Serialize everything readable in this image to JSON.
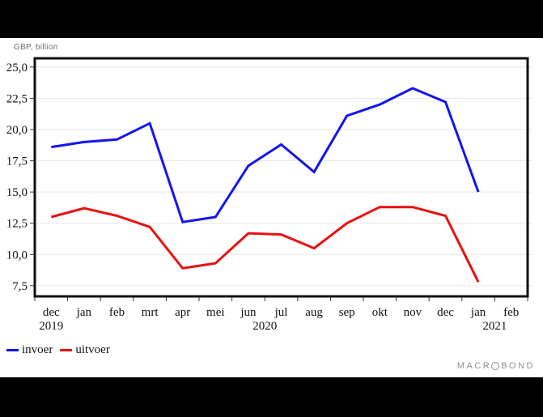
{
  "header": {
    "unit_label": "GBP, billion"
  },
  "chart_data": {
    "type": "line",
    "title": "",
    "ylabel": "GBP, billion",
    "xlabel": "",
    "grid": true,
    "legend_position": "bottom-left",
    "ylim": [
      6.65,
      25.7
    ],
    "categories": [
      "dec",
      "jan",
      "feb",
      "mrt",
      "apr",
      "mei",
      "jun",
      "jul",
      "aug",
      "sep",
      "okt",
      "nov",
      "dec",
      "jan",
      "feb"
    ],
    "year_labels": [
      {
        "text": "2019",
        "slot": 0.5
      },
      {
        "text": "2020",
        "slot": 7
      },
      {
        "text": "2021",
        "slot": 14
      }
    ],
    "y_ticks": [
      {
        "value": 25.0,
        "label": "25,0"
      },
      {
        "value": 22.5,
        "label": "22,5"
      },
      {
        "value": 20.0,
        "label": "20,0"
      },
      {
        "value": 17.5,
        "label": "17,5"
      },
      {
        "value": 15.0,
        "label": "15,0"
      },
      {
        "value": 12.5,
        "label": "12,5"
      },
      {
        "value": 10.0,
        "label": "10,0"
      },
      {
        "value": 7.5,
        "label": "7,5"
      }
    ],
    "series": [
      {
        "name": "invoer",
        "color": "#1414f0",
        "values": [
          18.6,
          19.0,
          19.2,
          20.5,
          12.6,
          13.0,
          17.1,
          18.8,
          16.6,
          21.1,
          22.0,
          23.3,
          22.2,
          15.0,
          null
        ]
      },
      {
        "name": "uitvoer",
        "color": "#e81010",
        "values": [
          13.0,
          13.7,
          13.1,
          12.2,
          8.9,
          9.3,
          11.7,
          11.6,
          10.5,
          12.5,
          13.8,
          13.8,
          13.1,
          7.8,
          null
        ]
      }
    ]
  },
  "legend": {
    "items": [
      {
        "label": "invoer",
        "color": "#1414f0"
      },
      {
        "label": "uitvoer",
        "color": "#e81010"
      }
    ]
  },
  "branding": {
    "prefix": "MACR",
    "suffix": "BOND"
  },
  "colors": {
    "frame": "#111111",
    "gridline": "#e7e7e7",
    "tick": "#333333",
    "right_tick_stub": "#e0e0e0",
    "axis_text": "#111111"
  }
}
